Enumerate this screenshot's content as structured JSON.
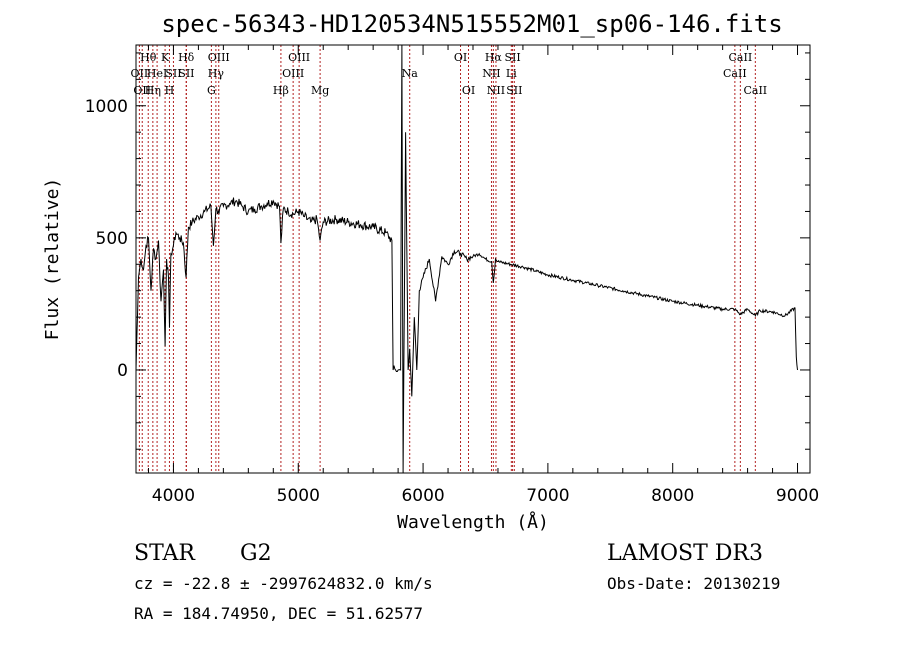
{
  "chart_data": {
    "type": "line",
    "title": "spec-56343-HD120534N515552M01_sp06-146.fits",
    "xlabel": "Wavelength (Å)",
    "ylabel": "Flux (relative)",
    "xlim": [
      3700,
      9100
    ],
    "ylim": [
      -390,
      1230
    ],
    "x_ticks": [
      4000,
      5000,
      6000,
      7000,
      8000,
      9000
    ],
    "x_tick_labels": [
      "4000",
      "5000",
      "6000",
      "7000",
      "8000",
      "9000"
    ],
    "y_ticks": [
      0,
      500,
      1000
    ],
    "y_tick_labels": [
      "0",
      "500",
      "1000"
    ],
    "grid": false,
    "line_color": "#000000",
    "marker_color": "#b22222",
    "spectrum": {
      "x": [
        3700,
        3720,
        3740,
        3760,
        3780,
        3800,
        3820,
        3840,
        3860,
        3880,
        3900,
        3920,
        3933,
        3945,
        3960,
        3968,
        3980,
        4000,
        4020,
        4050,
        4080,
        4101,
        4120,
        4150,
        4200,
        4250,
        4300,
        4320,
        4340,
        4360,
        4400,
        4450,
        4500,
        4550,
        4600,
        4650,
        4700,
        4750,
        4800,
        4850,
        4861,
        4880,
        4920,
        4960,
        5000,
        5050,
        5100,
        5150,
        5175,
        5200,
        5300,
        5400,
        5500,
        5600,
        5700,
        5750,
        5760,
        5780,
        5800,
        5820,
        5830,
        5840,
        5860,
        5880,
        5893,
        5910,
        5930,
        5950,
        5970,
        6000,
        6050,
        6100,
        6150,
        6200,
        6250,
        6300,
        6350,
        6400,
        6450,
        6500,
        6550,
        6563,
        6580,
        6600,
        6700,
        6800,
        6900,
        7000,
        7200,
        7400,
        7600,
        7800,
        8000,
        8200,
        8400,
        8498,
        8542,
        8600,
        8662,
        8700,
        8800,
        8900,
        8980,
        8990,
        9000
      ],
      "y": [
        0,
        350,
        420,
        380,
        470,
        500,
        300,
        460,
        420,
        490,
        260,
        380,
        90,
        420,
        350,
        160,
        440,
        470,
        520,
        500,
        480,
        350,
        540,
        560,
        580,
        600,
        620,
        470,
        610,
        600,
        620,
        630,
        640,
        620,
        600,
        610,
        620,
        630,
        640,
        620,
        480,
        610,
        600,
        590,
        600,
        580,
        560,
        570,
        490,
        560,
        570,
        560,
        550,
        540,
        520,
        490,
        0,
        0,
        0,
        0,
        1230,
        -390,
        900,
        0,
        80,
        -100,
        200,
        0,
        300,
        350,
        420,
        260,
        430,
        400,
        450,
        440,
        420,
        430,
        440,
        420,
        410,
        330,
        420,
        410,
        400,
        390,
        375,
        360,
        340,
        320,
        300,
        280,
        260,
        245,
        230,
        230,
        210,
        230,
        205,
        225,
        220,
        205,
        235,
        50,
        0
      ]
    },
    "line_markers": [
      {
        "wl": 3727,
        "label": "OII",
        "row": 2
      },
      {
        "wl": 3750,
        "label": "OII",
        "row": 3
      },
      {
        "wl": 3798,
        "label": "Hθ",
        "row": 1
      },
      {
        "wl": 3835,
        "label": "Hη",
        "row": 3
      },
      {
        "wl": 3869,
        "label": "HeI",
        "row": 2
      },
      {
        "wl": 3933,
        "label": "K",
        "row": 1
      },
      {
        "wl": 3968,
        "label": "H",
        "row": 3
      },
      {
        "wl": 4000,
        "label": "SII",
        "row": 2
      },
      {
        "wl": 4102,
        "label": "Hδ",
        "row": 1
      },
      {
        "wl": 4104,
        "label": "SII",
        "row": 2
      },
      {
        "wl": 4304,
        "label": "G",
        "row": 3
      },
      {
        "wl": 4340,
        "label": "Hγ",
        "row": 2
      },
      {
        "wl": 4363,
        "label": "OIII",
        "row": 1
      },
      {
        "wl": 4861,
        "label": "Hβ",
        "row": 3
      },
      {
        "wl": 4959,
        "label": "OIII",
        "row": 2
      },
      {
        "wl": 5007,
        "label": "OIII",
        "row": 1
      },
      {
        "wl": 5175,
        "label": "Mg",
        "row": 3
      },
      {
        "wl": 5893,
        "label": "Na",
        "row": 2
      },
      {
        "wl": 6300,
        "label": "OI",
        "row": 1
      },
      {
        "wl": 6364,
        "label": "OI",
        "row": 3
      },
      {
        "wl": 6548,
        "label": "NII",
        "row": 2
      },
      {
        "wl": 6563,
        "label": "Hα",
        "row": 1
      },
      {
        "wl": 6584,
        "label": "NII",
        "row": 3
      },
      {
        "wl": 6707,
        "label": "Li",
        "row": 2
      },
      {
        "wl": 6717,
        "label": "SII",
        "row": 1
      },
      {
        "wl": 6731,
        "label": "SII",
        "row": 3
      },
      {
        "wl": 8498,
        "label": "CaII",
        "row": 2
      },
      {
        "wl": 8542,
        "label": "CaII",
        "row": 1
      },
      {
        "wl": 8662,
        "label": "CaII",
        "row": 3
      }
    ]
  },
  "info": {
    "object_type": "STAR",
    "subclass": "G2",
    "survey": "LAMOST DR3",
    "redshift_line": "cz = -22.8 ± -2997624832.0 km/s",
    "obs_date": "Obs-Date: 20130219",
    "coords": "RA = 184.74950, DEC =  51.62577"
  }
}
